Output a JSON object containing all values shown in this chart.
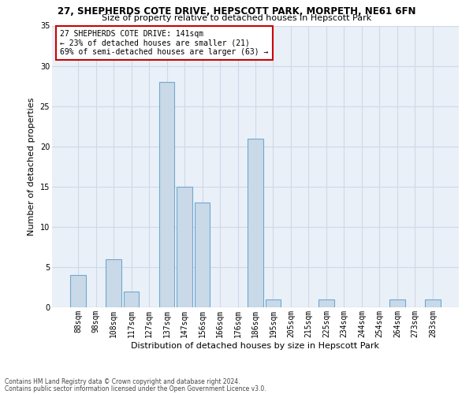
{
  "title1": "27, SHEPHERDS COTE DRIVE, HEPSCOTT PARK, MORPETH, NE61 6FN",
  "title2": "Size of property relative to detached houses in Hepscott Park",
  "xlabel": "Distribution of detached houses by size in Hepscott Park",
  "ylabel": "Number of detached properties",
  "categories": [
    "88sqm",
    "98sqm",
    "108sqm",
    "117sqm",
    "127sqm",
    "137sqm",
    "147sqm",
    "156sqm",
    "166sqm",
    "176sqm",
    "186sqm",
    "195sqm",
    "205sqm",
    "215sqm",
    "225sqm",
    "234sqm",
    "244sqm",
    "254sqm",
    "264sqm",
    "273sqm",
    "283sqm"
  ],
  "values": [
    4,
    0,
    6,
    2,
    0,
    28,
    15,
    13,
    0,
    0,
    21,
    1,
    0,
    0,
    1,
    0,
    0,
    0,
    1,
    0,
    1
  ],
  "bar_color": "#c9d9e8",
  "bar_edge_color": "#6fa8d0",
  "annotation_text": "27 SHEPHERDS COTE DRIVE: 141sqm\n← 23% of detached houses are smaller (21)\n69% of semi-detached houses are larger (63) →",
  "annotation_box_color": "#ffffff",
  "annotation_box_edge_color": "#cc0000",
  "ylim": [
    0,
    35
  ],
  "yticks": [
    0,
    5,
    10,
    15,
    20,
    25,
    30,
    35
  ],
  "grid_color": "#d0d8e8",
  "background_color": "#eaf0f8",
  "footer1": "Contains HM Land Registry data © Crown copyright and database right 2024.",
  "footer2": "Contains public sector information licensed under the Open Government Licence v3.0.",
  "title1_fontsize": 8.5,
  "title2_fontsize": 8.0,
  "annotation_fontsize": 7.0,
  "axis_tick_fontsize": 7.0,
  "ylabel_fontsize": 8.0,
  "xlabel_fontsize": 8.0,
  "footer_fontsize": 5.5
}
